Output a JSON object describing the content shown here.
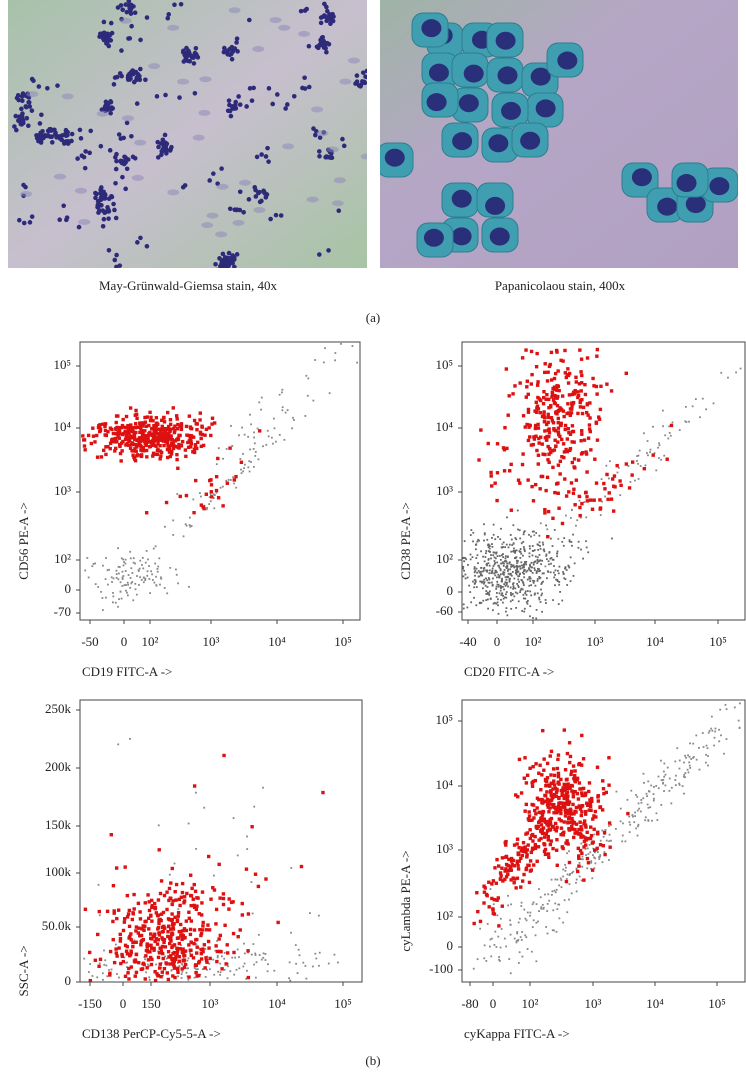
{
  "panel_a": {
    "images": [
      {
        "caption": "May-Grünwald-Giemsa stain, 40x"
      },
      {
        "caption": "Papanicolaou stain, 400x"
      }
    ],
    "label": "(a)"
  },
  "panel_b": {
    "plots": [
      {
        "x_label": "CD19 FITC-A ->",
        "y_label": "CD56 PE-A ->",
        "xticks": [
          "-50",
          "0",
          "10²",
          "10³",
          "10⁴",
          "10⁵"
        ],
        "yticks": [
          "10⁵",
          "10⁴",
          "10³",
          "10²",
          "0",
          "-70"
        ]
      },
      {
        "x_label": "CD20 FITC-A ->",
        "y_label": "CD38 PE-A ->",
        "xticks": [
          "-40",
          "0",
          "10²",
          "10³",
          "10⁴",
          "10⁵"
        ],
        "yticks": [
          "10⁵",
          "10⁴",
          "10³",
          "10²",
          "0",
          "-60"
        ]
      },
      {
        "x_label": "CD138 PerCP-Cy5-5-A ->",
        "y_label": "SSC-A ->",
        "xticks": [
          "-150",
          "0",
          "150",
          "10³",
          "10⁴",
          "10⁵"
        ],
        "yticks": [
          "250k",
          "200k",
          "150k",
          "100k",
          "50.0k",
          "0"
        ]
      },
      {
        "x_label": "cyKappa FITC-A ->",
        "y_label": "cyLambda PE-A ->",
        "xticks": [
          "-80",
          "0",
          "10²",
          "10³",
          "10⁴",
          "10⁵"
        ],
        "yticks": [
          "10⁵",
          "10⁴",
          "10³",
          "10²",
          "0",
          "-100"
        ]
      }
    ],
    "label": "(b)"
  }
}
